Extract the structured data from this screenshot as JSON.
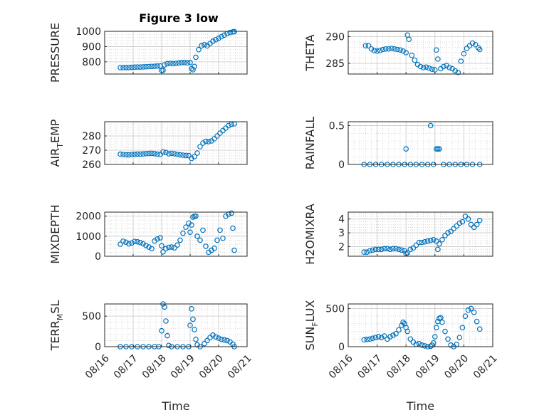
{
  "title": "Figure 3 low",
  "marker_color": "#0072BD",
  "x_tick_labels": [
    "08/16",
    "08/17",
    "08/18",
    "08/19",
    "08/20",
    "08/21"
  ],
  "xlabel": "Time",
  "chart_data": [
    {
      "type": "scatter",
      "ylabel": "PRESSURE",
      "title": "Figure 3 low",
      "xlim": [
        0,
        5
      ],
      "ylim": [
        720,
        1000
      ],
      "yticks": [
        800,
        900,
        1000
      ],
      "grid": "on",
      "x": [
        0.55,
        0.65,
        0.75,
        0.85,
        0.95,
        1.05,
        1.15,
        1.25,
        1.35,
        1.45,
        1.55,
        1.65,
        1.75,
        1.85,
        1.95,
        2.0,
        2.05,
        2.1,
        2.2,
        2.3,
        2.4,
        2.5,
        2.6,
        2.7,
        2.8,
        2.9,
        3.0,
        3.05,
        3.1,
        3.15,
        3.2,
        3.3,
        3.4,
        3.5,
        3.6,
        3.7,
        3.8,
        3.9,
        4.0,
        4.1,
        4.2,
        4.3,
        4.4,
        4.5,
        4.55
      ],
      "y": [
        762,
        762,
        763,
        763,
        764,
        765,
        766,
        766,
        767,
        768,
        769,
        770,
        771,
        772,
        773,
        744,
        745,
        780,
        788,
        790,
        788,
        790,
        792,
        795,
        795,
        793,
        796,
        755,
        748,
        770,
        830,
        880,
        905,
        912,
        905,
        920,
        935,
        945,
        955,
        965,
        975,
        985,
        992,
        996,
        998
      ]
    },
    {
      "type": "scatter",
      "ylabel": "THETA",
      "xlim": [
        0,
        5
      ],
      "ylim": [
        283,
        291
      ],
      "yticks": [
        285,
        290
      ],
      "grid": "on",
      "x": [
        0.6,
        0.7,
        0.8,
        0.9,
        1.0,
        1.1,
        1.2,
        1.3,
        1.4,
        1.5,
        1.6,
        1.7,
        1.8,
        1.9,
        2.0,
        2.05,
        2.1,
        2.2,
        2.3,
        2.4,
        2.5,
        2.6,
        2.7,
        2.8,
        2.9,
        3.0,
        3.05,
        3.1,
        3.2,
        3.3,
        3.4,
        3.5,
        3.6,
        3.7,
        3.8,
        3.9,
        4.0,
        4.1,
        4.2,
        4.3,
        4.4,
        4.5,
        4.55
      ],
      "y": [
        288.3,
        288.3,
        287.7,
        287.4,
        287.3,
        287.4,
        287.6,
        287.7,
        287.7,
        287.8,
        287.7,
        287.6,
        287.5,
        287.3,
        287.0,
        290.3,
        289.5,
        286.5,
        285.6,
        284.8,
        284.4,
        284.2,
        284.3,
        284.1,
        283.9,
        283.8,
        287.5,
        285.8,
        284.0,
        284.4,
        284.6,
        284.2,
        284.0,
        283.6,
        283.3,
        285.4,
        286.8,
        287.8,
        288.3,
        288.8,
        288.5,
        287.9,
        287.6
      ]
    },
    {
      "type": "scatter",
      "ylabel": "AIR_TEMP",
      "xlim": [
        0,
        5
      ],
      "ylim": [
        260,
        290
      ],
      "yticks": [
        260,
        270,
        280
      ],
      "grid": "on",
      "x": [
        0.55,
        0.65,
        0.75,
        0.85,
        0.95,
        1.05,
        1.15,
        1.25,
        1.35,
        1.45,
        1.55,
        1.65,
        1.75,
        1.85,
        1.95,
        2.05,
        2.15,
        2.25,
        2.35,
        2.45,
        2.55,
        2.65,
        2.75,
        2.85,
        2.95,
        3.05,
        3.15,
        3.25,
        3.35,
        3.45,
        3.55,
        3.65,
        3.75,
        3.85,
        3.95,
        4.05,
        4.15,
        4.25,
        4.35,
        4.45,
        4.55
      ],
      "y": [
        267.2,
        267.0,
        266.8,
        266.8,
        267.0,
        267.1,
        267.3,
        267.3,
        267.4,
        267.6,
        267.7,
        267.8,
        267.6,
        267.2,
        267.0,
        268.8,
        268.4,
        267.5,
        267.8,
        267.5,
        267.0,
        266.7,
        266.5,
        266.3,
        266.2,
        264.2,
        265.5,
        268.0,
        272.5,
        275.0,
        276.2,
        276.0,
        276.5,
        278.0,
        280.0,
        282.0,
        283.8,
        285.5,
        287.3,
        288.2,
        288.5
      ]
    },
    {
      "type": "scatter",
      "ylabel": "RAINFALL",
      "xlim": [
        0,
        5
      ],
      "ylim": [
        0,
        0.55
      ],
      "yticks": [
        0,
        0.5
      ],
      "grid": "on",
      "x": [
        0.55,
        0.75,
        0.95,
        1.15,
        1.35,
        1.55,
        1.75,
        1.95,
        2.0,
        2.15,
        2.35,
        2.55,
        2.75,
        2.85,
        2.95,
        3.05,
        3.1,
        3.15,
        3.3,
        3.5,
        3.7,
        3.9,
        4.1,
        4.3,
        4.55
      ],
      "y": [
        0,
        0,
        0,
        0,
        0,
        0,
        0,
        0,
        0.2,
        0,
        0,
        0,
        0,
        0.5,
        0,
        0.2,
        0.2,
        0.2,
        0,
        0,
        0,
        0,
        0,
        0,
        0
      ]
    },
    {
      "type": "scatter",
      "ylabel": "MIXDEPTH",
      "xlim": [
        0,
        5
      ],
      "ylim": [
        0,
        2200
      ],
      "yticks": [
        0,
        1000,
        2000
      ],
      "grid": "on",
      "x": [
        0.55,
        0.65,
        0.75,
        0.85,
        0.95,
        1.05,
        1.15,
        1.25,
        1.35,
        1.45,
        1.55,
        1.65,
        1.75,
        1.85,
        1.95,
        2.0,
        2.05,
        2.15,
        2.25,
        2.35,
        2.45,
        2.55,
        2.65,
        2.75,
        2.85,
        2.95,
        3.0,
        3.05,
        3.1,
        3.15,
        3.2,
        3.25,
        3.35,
        3.45,
        3.55,
        3.65,
        3.75,
        3.85,
        3.95,
        4.05,
        4.15,
        4.25,
        4.35,
        4.45,
        4.5,
        4.55
      ],
      "y": [
        600,
        750,
        700,
        620,
        660,
        740,
        720,
        680,
        620,
        540,
        460,
        380,
        760,
        860,
        920,
        520,
        220,
        380,
        440,
        460,
        420,
        560,
        800,
        1150,
        1450,
        1650,
        1200,
        1560,
        1950,
        2000,
        2000,
        1000,
        800,
        1300,
        500,
        200,
        300,
        400,
        800,
        1300,
        900,
        2000,
        2100,
        2150,
        1400,
        300
      ]
    },
    {
      "type": "scatter",
      "ylabel": "H2OMIXRA",
      "xlim": [
        0,
        5
      ],
      "ylim": [
        1.3,
        4.5
      ],
      "yticks": [
        2,
        3,
        4
      ],
      "grid": "on",
      "x": [
        0.55,
        0.65,
        0.75,
        0.85,
        0.95,
        1.05,
        1.15,
        1.25,
        1.35,
        1.45,
        1.55,
        1.65,
        1.75,
        1.85,
        1.95,
        2.0,
        2.05,
        2.15,
        2.25,
        2.35,
        2.45,
        2.55,
        2.65,
        2.75,
        2.85,
        2.95,
        3.05,
        3.1,
        3.15,
        3.25,
        3.35,
        3.45,
        3.55,
        3.65,
        3.75,
        3.85,
        3.95,
        4.05,
        4.15,
        4.25,
        4.35,
        4.45,
        4.55
      ],
      "y": [
        1.6,
        1.6,
        1.7,
        1.75,
        1.8,
        1.8,
        1.8,
        1.85,
        1.85,
        1.8,
        1.85,
        1.85,
        1.8,
        1.75,
        1.7,
        1.5,
        1.55,
        1.8,
        1.9,
        2.1,
        2.3,
        2.3,
        2.35,
        2.4,
        2.45,
        2.5,
        2.4,
        1.8,
        2.2,
        2.5,
        2.8,
        3.0,
        3.1,
        3.3,
        3.5,
        3.7,
        3.8,
        4.2,
        4.0,
        3.6,
        3.4,
        3.6,
        3.9
      ]
    },
    {
      "type": "scatter",
      "ylabel": "TERR_MSL",
      "xlim": [
        0,
        5
      ],
      "ylim": [
        0,
        700
      ],
      "yticks": [
        0,
        500
      ],
      "grid": "on",
      "x": [
        0.55,
        0.75,
        0.95,
        1.15,
        1.35,
        1.55,
        1.75,
        1.9,
        2.0,
        2.05,
        2.1,
        2.15,
        2.2,
        2.25,
        2.35,
        2.55,
        2.75,
        2.95,
        3.0,
        3.05,
        3.1,
        3.15,
        3.2,
        3.25,
        3.35,
        3.5,
        3.6,
        3.7,
        3.8,
        3.9,
        4.0,
        4.1,
        4.2,
        4.3,
        4.4,
        4.5,
        4.55
      ],
      "y": [
        0,
        0,
        0,
        0,
        0,
        0,
        0,
        0,
        260,
        700,
        650,
        420,
        180,
        20,
        0,
        0,
        0,
        0,
        350,
        620,
        450,
        280,
        120,
        30,
        0,
        50,
        100,
        150,
        190,
        160,
        140,
        120,
        110,
        100,
        80,
        40,
        0
      ]
    },
    {
      "type": "scatter",
      "ylabel": "SUN_FLUX",
      "xlim": [
        0,
        5
      ],
      "ylim": [
        0,
        560
      ],
      "yticks": [
        0,
        500
      ],
      "grid": "on",
      "x": [
        0.55,
        0.65,
        0.75,
        0.85,
        0.95,
        1.05,
        1.15,
        1.25,
        1.35,
        1.45,
        1.55,
        1.65,
        1.75,
        1.85,
        1.9,
        1.95,
        2.0,
        2.05,
        2.15,
        2.25,
        2.35,
        2.45,
        2.55,
        2.65,
        2.75,
        2.85,
        2.9,
        2.95,
        3.0,
        3.05,
        3.1,
        3.15,
        3.2,
        3.25,
        3.35,
        3.45,
        3.55,
        3.65,
        3.75,
        3.85,
        3.95,
        4.05,
        4.15,
        4.25,
        4.35,
        4.45,
        4.55
      ],
      "y": [
        90,
        95,
        100,
        110,
        120,
        130,
        120,
        140,
        100,
        130,
        150,
        170,
        220,
        280,
        320,
        300,
        250,
        200,
        100,
        60,
        30,
        40,
        20,
        10,
        0,
        5,
        20,
        50,
        130,
        250,
        330,
        370,
        380,
        320,
        200,
        100,
        20,
        0,
        30,
        120,
        250,
        400,
        480,
        500,
        450,
        330,
        230
      ]
    }
  ]
}
